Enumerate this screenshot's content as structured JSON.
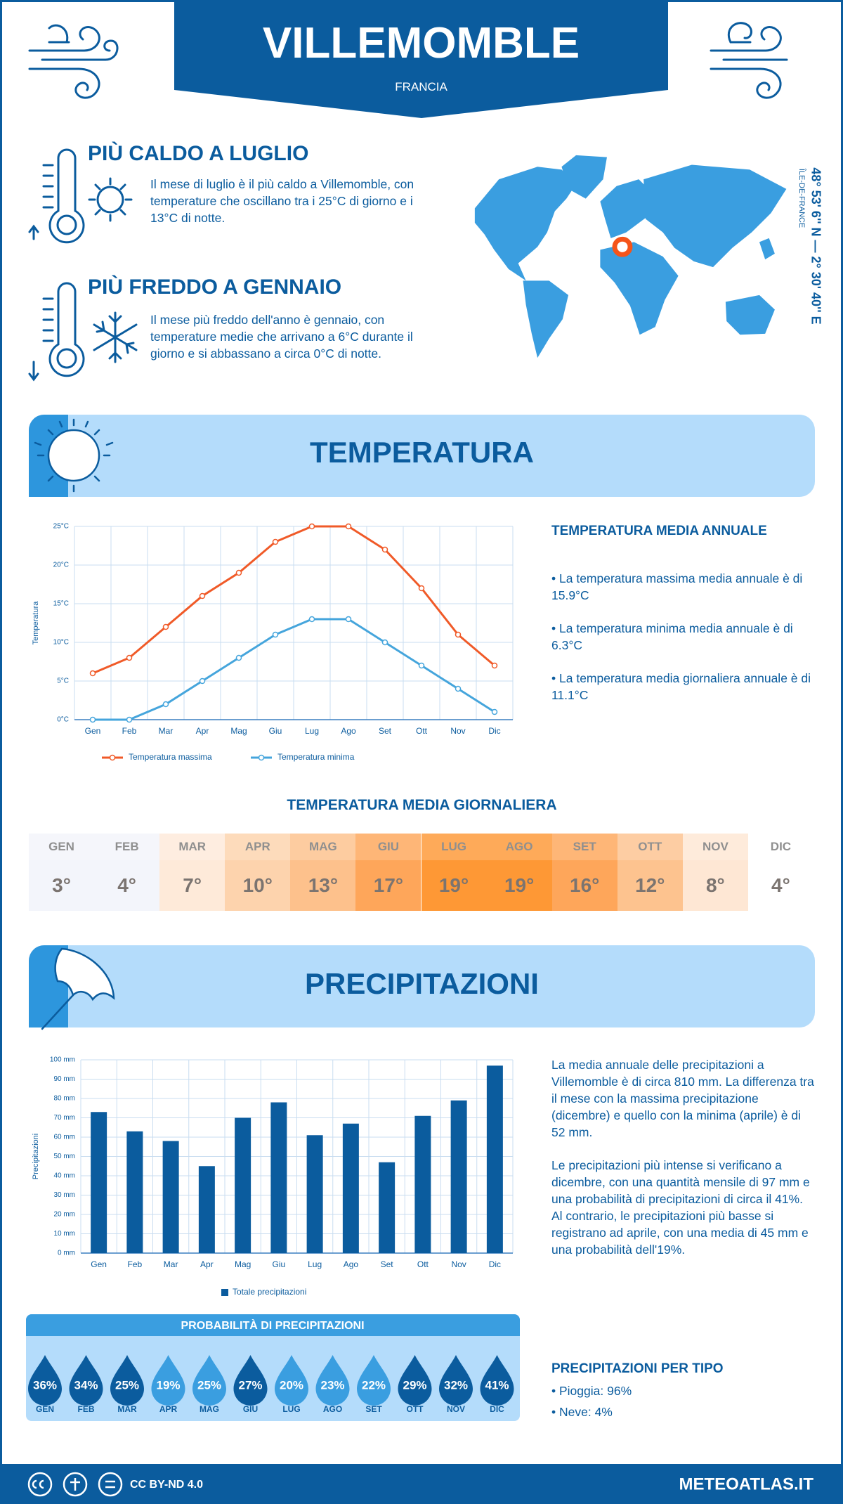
{
  "header": {
    "title": "VILLEMOMBLE",
    "subtitle": "FRANCIA"
  },
  "location": {
    "coordinates": "48° 53' 6'' N — 2° 30' 40'' E",
    "region": "ÎLE-DE-FRANCE"
  },
  "hottest": {
    "title": "PIÙ CALDO A LUGLIO",
    "text": "Il mese di luglio è il più caldo a Villemomble, con temperature che oscillano tra i 25°C di giorno e i 13°C di notte."
  },
  "coldest": {
    "title": "PIÙ FREDDO A GENNAIO",
    "text": "Il mese più freddo dell'anno è gennaio, con temperature medie che arrivano a 6°C durante il giorno e si abbassano a circa 0°C di notte."
  },
  "temperature_section": {
    "title": "TEMPERATURA"
  },
  "chart_data": [
    {
      "type": "line",
      "y_label": "Temperatura",
      "categories": [
        "Gen",
        "Feb",
        "Mar",
        "Apr",
        "Mag",
        "Giu",
        "Lug",
        "Ago",
        "Set",
        "Ott",
        "Nov",
        "Dic"
      ],
      "series": [
        {
          "name": "Temperatura massima",
          "color": "#f05a28",
          "values": [
            6,
            8,
            12,
            16,
            19,
            23,
            25,
            25,
            22,
            17,
            11,
            7
          ]
        },
        {
          "name": "Temperatura minima",
          "color": "#45a5dc",
          "values": [
            0,
            0,
            2,
            5,
            8,
            11,
            13,
            13,
            10,
            7,
            4,
            1
          ]
        }
      ],
      "ylim": [
        0,
        25
      ],
      "yticks": [
        {
          "value": 0,
          "label": "0°C"
        },
        {
          "value": 5,
          "label": "5°C"
        },
        {
          "value": 10,
          "label": "10°C"
        },
        {
          "value": 15,
          "label": "15°C"
        },
        {
          "value": 20,
          "label": "20°C"
        },
        {
          "value": 25,
          "label": "25°C"
        }
      ],
      "grid": true
    },
    {
      "type": "bar",
      "y_label": "Precipitazioni",
      "categories": [
        "Gen",
        "Feb",
        "Mar",
        "Apr",
        "Mag",
        "Giu",
        "Lug",
        "Ago",
        "Set",
        "Ott",
        "Nov",
        "Dic"
      ],
      "series": [
        {
          "name": "Totale precipitazioni",
          "color": "#0b5c9e",
          "values": [
            73,
            63,
            58,
            45,
            70,
            78,
            61,
            67,
            47,
            71,
            79,
            97
          ]
        }
      ],
      "ylim": [
        0,
        100
      ],
      "yticks": [
        {
          "value": 0,
          "label": "0 mm"
        },
        {
          "value": 10,
          "label": "10 mm"
        },
        {
          "value": 20,
          "label": "20 mm"
        },
        {
          "value": 30,
          "label": "30 mm"
        },
        {
          "value": 40,
          "label": "40 mm"
        },
        {
          "value": 50,
          "label": "50 mm"
        },
        {
          "value": 60,
          "label": "60 mm"
        },
        {
          "value": 70,
          "label": "70 mm"
        },
        {
          "value": 80,
          "label": "80 mm"
        },
        {
          "value": 90,
          "label": "90 mm"
        },
        {
          "value": 100,
          "label": "100 mm"
        }
      ],
      "grid": true
    }
  ],
  "annual_temperature": {
    "title": "TEMPERATURA MEDIA ANNUALE",
    "items": [
      "La temperatura massima media annuale è di 15.9°C",
      "La temperatura minima media annuale è di 6.3°C",
      "La temperatura media giornaliera annuale è di 11.1°C"
    ]
  },
  "daily_temperature": {
    "title": "TEMPERATURA MEDIA GIORNALIERA",
    "months": [
      "GEN",
      "FEB",
      "MAR",
      "APR",
      "MAG",
      "GIU",
      "LUG",
      "AGO",
      "SET",
      "OTT",
      "NOV",
      "DIC"
    ],
    "values": [
      "3°",
      "4°",
      "7°",
      "10°",
      "13°",
      "17°",
      "19°",
      "19°",
      "16°",
      "12°",
      "8°",
      "4°"
    ],
    "colors": [
      "#f3f5fb",
      "#f3f5fb",
      "#feead9",
      "#fdd3ad",
      "#fdc18c",
      "#fea65a",
      "#fe9835",
      "#fe9835",
      "#fea65a",
      "#fdc38f",
      "#fee7d4",
      "#ffffff"
    ]
  },
  "precipitation_section": {
    "title": "PRECIPITAZIONI"
  },
  "precipitation_text": [
    "La media annuale delle precipitazioni a Villemomble è di circa 810 mm. La differenza tra il mese con la massima precipitazione (dicembre) e quello con la minima (aprile) è di 52 mm.",
    "Le precipitazioni più intense si verificano a dicembre, con una quantità mensile di 97 mm e una probabilità di precipitazioni di circa il 41%. Al contrario, le precipitazioni più basse si registrano ad aprile, con una media di 45 mm e una probabilità dell'19%."
  ],
  "precipitation_probability": {
    "title": "PROBABILITÀ DI PRECIPITAZIONI",
    "months": [
      "GEN",
      "FEB",
      "MAR",
      "APR",
      "MAG",
      "GIU",
      "LUG",
      "AGO",
      "SET",
      "OTT",
      "NOV",
      "DIC"
    ],
    "values": [
      "36%",
      "34%",
      "25%",
      "19%",
      "25%",
      "27%",
      "20%",
      "23%",
      "22%",
      "29%",
      "32%",
      "41%"
    ],
    "colors": [
      "#0b5c9e",
      "#0b5c9e",
      "#0b5c9e",
      "#3a9ee0",
      "#3a9ee0",
      "#0b5c9e",
      "#3a9ee0",
      "#3a9ee0",
      "#3a9ee0",
      "#0b5c9e",
      "#0b5c9e",
      "#0b5c9e"
    ]
  },
  "precipitation_type": {
    "title": "PRECIPITAZIONI PER TIPO",
    "items": [
      "Pioggia: 96%",
      "Neve: 4%"
    ]
  },
  "footer": {
    "license": "CC BY-ND 4.0",
    "site": "METEOATLAS.IT"
  }
}
